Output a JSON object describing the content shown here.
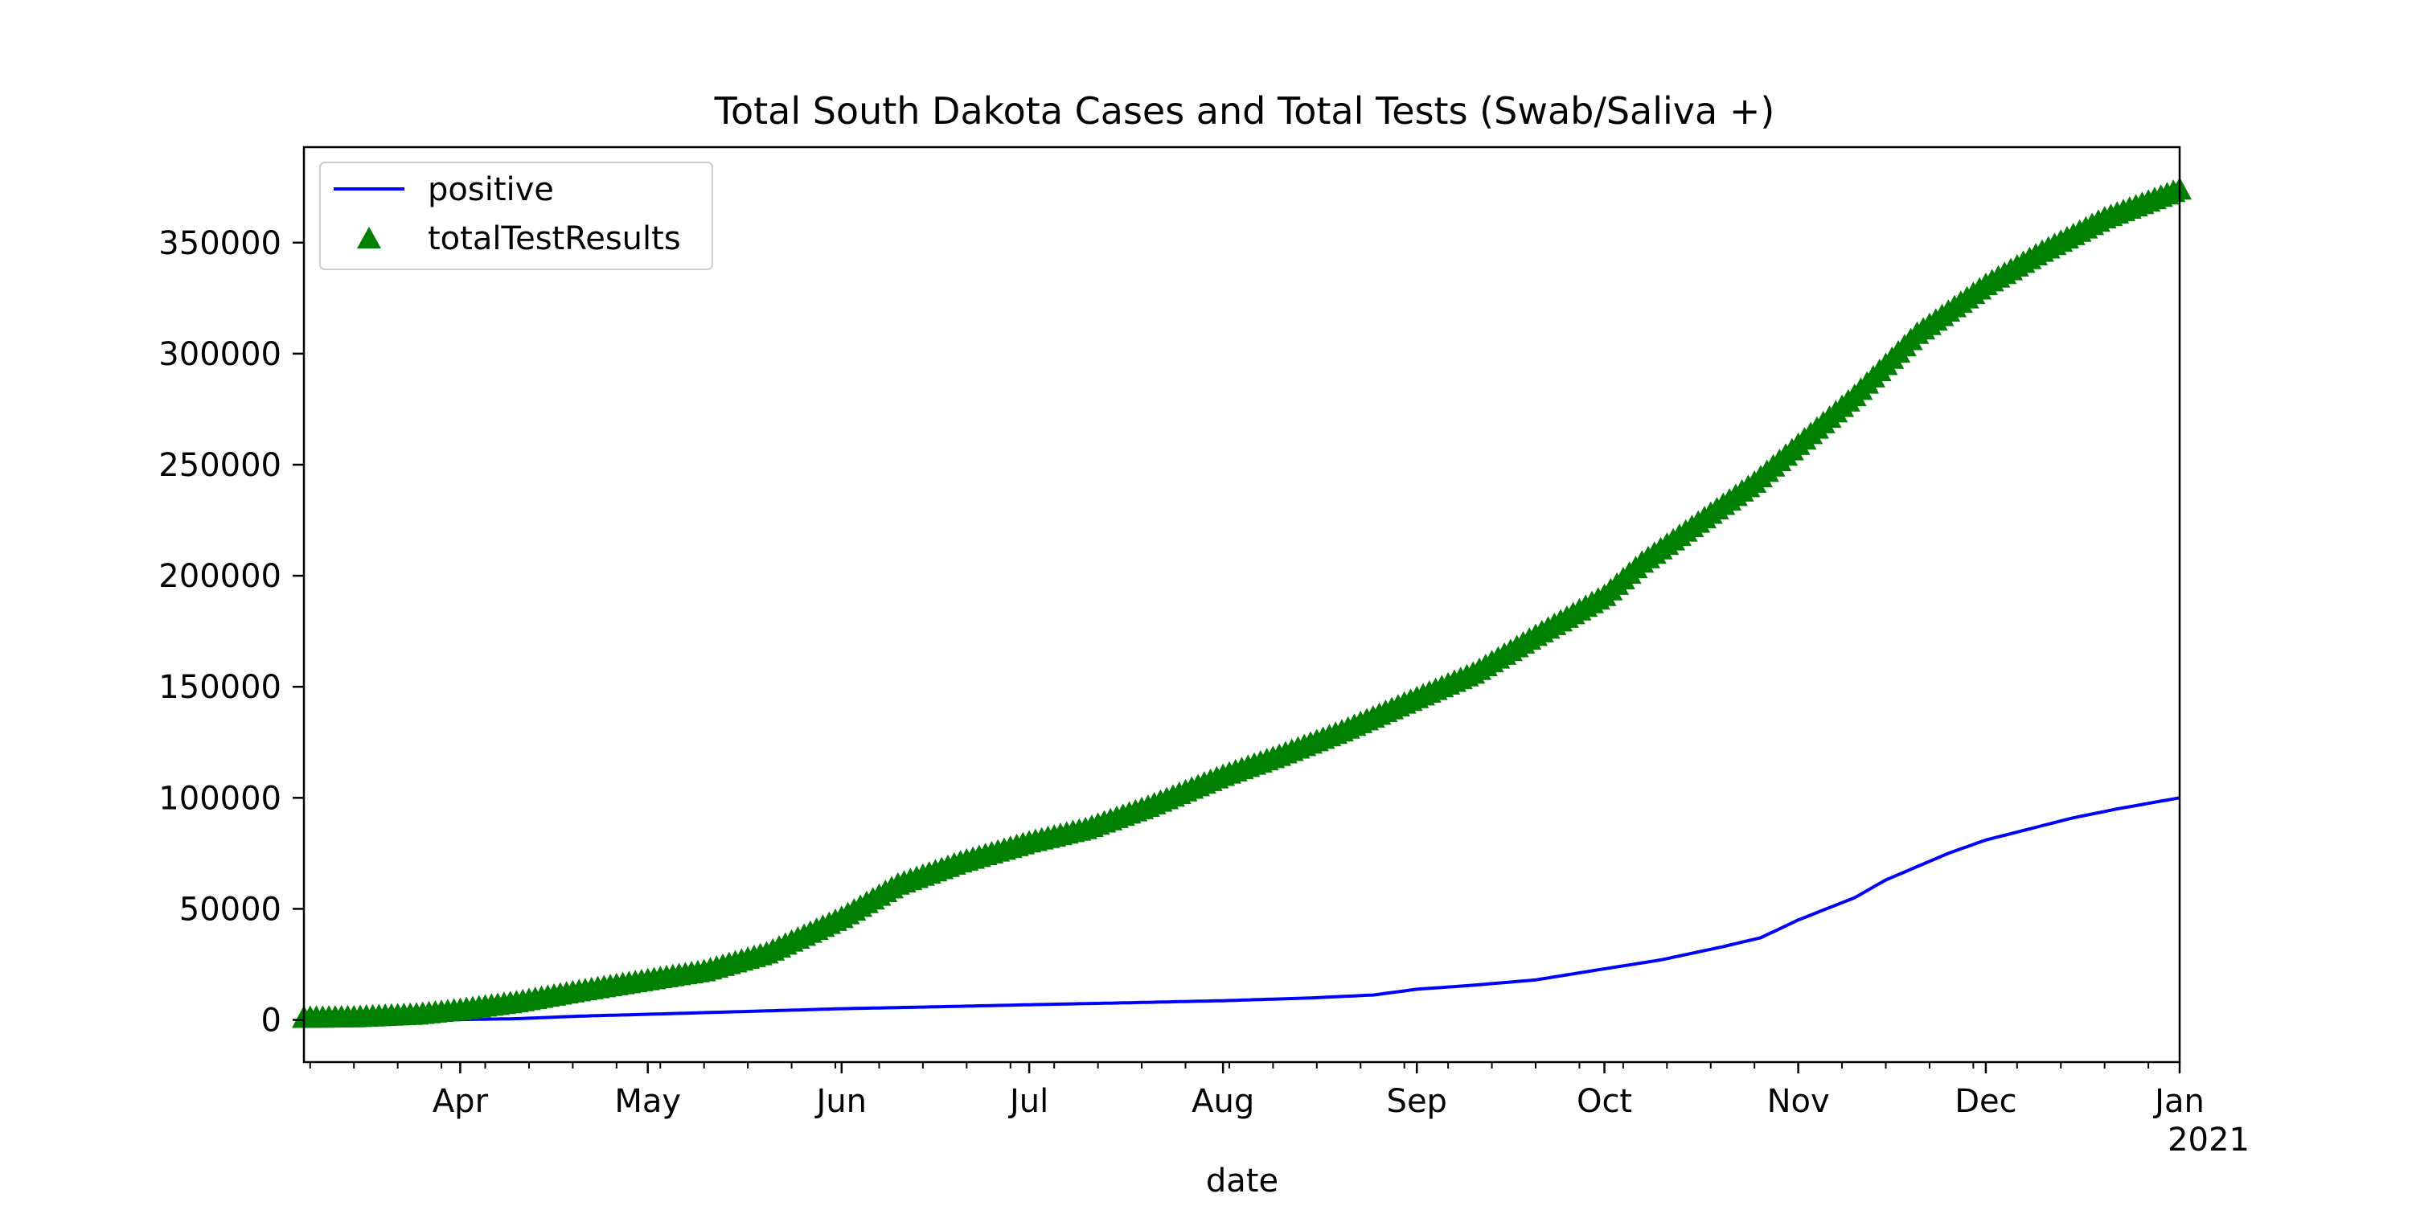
{
  "chart_data": {
    "type": "line",
    "title": "Total South Dakota Cases and Total Tests (Swab/Saliva +)",
    "xlabel": "date",
    "ylabel": "",
    "xlim": [
      "2020-03-07",
      "2021-01-01"
    ],
    "ylim": [
      -19000,
      393000
    ],
    "grid": false,
    "legend_position": "upper left",
    "x_ticks": [
      {
        "date": "2020-04-01",
        "label": "Apr"
      },
      {
        "date": "2020-05-01",
        "label": "May"
      },
      {
        "date": "2020-06-01",
        "label": "Jun"
      },
      {
        "date": "2020-07-01",
        "label": "Jul"
      },
      {
        "date": "2020-08-01",
        "label": "Aug"
      },
      {
        "date": "2020-09-01",
        "label": "Sep"
      },
      {
        "date": "2020-10-01",
        "label": "Oct"
      },
      {
        "date": "2020-11-01",
        "label": "Nov"
      },
      {
        "date": "2020-12-01",
        "label": "Dec"
      },
      {
        "date": "2021-01-01",
        "label": "Jan",
        "sublabel": "2021"
      }
    ],
    "y_ticks": [
      0,
      50000,
      100000,
      150000,
      200000,
      250000,
      300000,
      350000
    ],
    "series": [
      {
        "name": "positive",
        "style": "line",
        "color": "#0000ff",
        "points": [
          [
            "2020-03-07",
            0
          ],
          [
            "2020-03-20",
            14
          ],
          [
            "2020-04-01",
            129
          ],
          [
            "2020-04-10",
            536
          ],
          [
            "2020-04-20",
            1685
          ],
          [
            "2020-05-01",
            2525
          ],
          [
            "2020-05-15",
            3663
          ],
          [
            "2020-06-01",
            5034
          ],
          [
            "2020-06-15",
            5833
          ],
          [
            "2020-07-01",
            6826
          ],
          [
            "2020-07-15",
            7610
          ],
          [
            "2020-08-01",
            8641
          ],
          [
            "2020-08-15",
            9880
          ],
          [
            "2020-08-25",
            11200
          ],
          [
            "2020-09-01",
            13800
          ],
          [
            "2020-09-10",
            15600
          ],
          [
            "2020-09-20",
            18000
          ],
          [
            "2020-10-01",
            23000
          ],
          [
            "2020-10-10",
            27000
          ],
          [
            "2020-10-20",
            33000
          ],
          [
            "2020-10-26",
            37000
          ],
          [
            "2020-11-01",
            45000
          ],
          [
            "2020-11-10",
            55000
          ],
          [
            "2020-11-15",
            63000
          ],
          [
            "2020-11-20",
            69000
          ],
          [
            "2020-11-25",
            75000
          ],
          [
            "2020-12-01",
            81000
          ],
          [
            "2020-12-08",
            86000
          ],
          [
            "2020-12-15",
            91000
          ],
          [
            "2020-12-22",
            95000
          ],
          [
            "2021-01-01",
            100000
          ]
        ]
      },
      {
        "name": "totalTestResults",
        "style": "triangle-markers",
        "color": "#008000",
        "points": [
          [
            "2020-03-07",
            0
          ],
          [
            "2020-03-15",
            300
          ],
          [
            "2020-03-25",
            1500
          ],
          [
            "2020-04-01",
            3600
          ],
          [
            "2020-04-10",
            7000
          ],
          [
            "2020-04-20",
            12000
          ],
          [
            "2020-05-01",
            17000
          ],
          [
            "2020-05-10",
            21000
          ],
          [
            "2020-05-20",
            29000
          ],
          [
            "2020-06-01",
            45000
          ],
          [
            "2020-06-10",
            60000
          ],
          [
            "2020-06-20",
            70000
          ],
          [
            "2020-07-01",
            79000
          ],
          [
            "2020-07-10",
            85000
          ],
          [
            "2020-07-20",
            95000
          ],
          [
            "2020-08-01",
            109000
          ],
          [
            "2020-08-10",
            118000
          ],
          [
            "2020-08-20",
            129000
          ],
          [
            "2020-09-01",
            144000
          ],
          [
            "2020-09-10",
            155000
          ],
          [
            "2020-09-20",
            172000
          ],
          [
            "2020-10-01",
            190000
          ],
          [
            "2020-10-07",
            205000
          ],
          [
            "2020-10-15",
            221000
          ],
          [
            "2020-10-25",
            241000
          ],
          [
            "2020-11-01",
            258000
          ],
          [
            "2020-11-10",
            280000
          ],
          [
            "2020-11-20",
            308000
          ],
          [
            "2020-12-01",
            330000
          ],
          [
            "2020-12-10",
            345000
          ],
          [
            "2020-12-20",
            360000
          ],
          [
            "2021-01-01",
            373000
          ]
        ]
      }
    ]
  }
}
